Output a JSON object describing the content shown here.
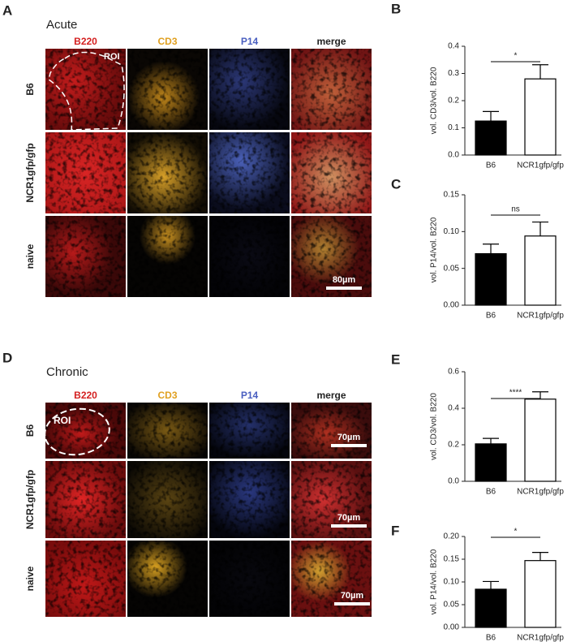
{
  "figure": {
    "panel_a": {
      "letter": "A",
      "title": "Acute",
      "columns": [
        "B220",
        "CD3",
        "P14",
        "merge"
      ],
      "rows": [
        "B6",
        "NCR1gfp/gfp",
        "naive"
      ],
      "roi": "ROI",
      "scale_bars": [
        "80µm"
      ]
    },
    "panel_d": {
      "letter": "D",
      "title": "Chronic",
      "columns": [
        "B220",
        "CD3",
        "P14",
        "merge"
      ],
      "rows": [
        "B6",
        "NCR1gfp/gfp",
        "naive"
      ],
      "roi": "ROI",
      "scale_bars": [
        "70µm",
        "70µm",
        "70µm"
      ]
    }
  },
  "chart_data": [
    {
      "type": "bar",
      "panel": "B",
      "ylabel": "vol. CD3/vol. B220",
      "categories": [
        "B6",
        "NCR1gfp/gfp"
      ],
      "values": [
        0.125,
        0.28
      ],
      "errors": [
        0.035,
        0.052
      ],
      "colors": [
        "#000000",
        "#ffffff"
      ],
      "significance": "*",
      "ylim": [
        0,
        0.4
      ],
      "yticks": [
        {
          "value": 0,
          "label": "0.0"
        },
        0.1,
        0.2,
        0.3,
        0.4
      ]
    },
    {
      "type": "bar",
      "panel": "C",
      "ylabel": "vol. P14/vol. B220",
      "categories": [
        "B6",
        "NCR1gfp/gfp"
      ],
      "values": [
        0.07,
        0.094
      ],
      "errors": [
        0.013,
        0.019
      ],
      "colors": [
        "#000000",
        "#ffffff"
      ],
      "significance": "ns",
      "ylim": [
        0,
        0.15
      ],
      "yticks": [
        {
          "value": 0,
          "label": "0.00"
        },
        {
          "value": 0.05,
          "label": "0.05"
        },
        {
          "value": 0.1,
          "label": "0.10"
        },
        {
          "value": 0.15,
          "label": "0.15"
        }
      ]
    },
    {
      "type": "bar",
      "panel": "E",
      "ylabel": "vol. CD3/vol. B220",
      "categories": [
        "B6",
        "NCR1gfp/gfp"
      ],
      "values": [
        0.205,
        0.45
      ],
      "errors": [
        0.03,
        0.04
      ],
      "colors": [
        "#000000",
        "#ffffff"
      ],
      "significance": "****",
      "ylim": [
        0,
        0.6
      ],
      "yticks": [
        {
          "value": 0,
          "label": "0.0"
        },
        0.2,
        0.4,
        0.6
      ]
    },
    {
      "type": "bar",
      "panel": "F",
      "ylabel": "vol. P14/vol. B220",
      "categories": [
        "B6",
        "NCR1gfp/gfp"
      ],
      "values": [
        0.084,
        0.147
      ],
      "errors": [
        0.017,
        0.018
      ],
      "colors": [
        "#000000",
        "#ffffff"
      ],
      "significance": "*",
      "ylim": [
        0,
        0.2
      ],
      "yticks": [
        {
          "value": 0,
          "label": "0.00"
        },
        {
          "value": 0.05,
          "label": "0.05"
        },
        {
          "value": 0.1,
          "label": "0.10"
        },
        {
          "value": 0.15,
          "label": "0.15"
        },
        {
          "value": 0.2,
          "label": "0.20"
        }
      ]
    }
  ]
}
